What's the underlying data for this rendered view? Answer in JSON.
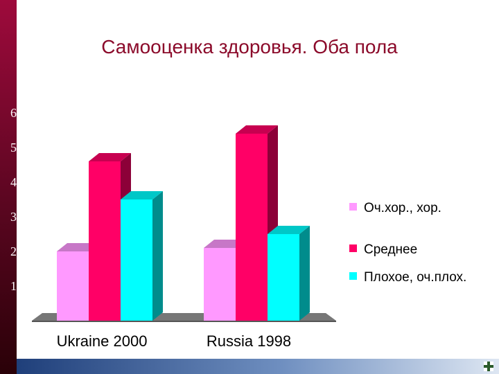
{
  "chart_data": {
    "type": "bar",
    "title": "Самооценка здоровья. Оба пола",
    "categories": [
      "Ukraine 2000",
      "Russia 1998"
    ],
    "series": [
      {
        "name": "Оч.хор., хор.",
        "values": [
          2,
          2.1
        ],
        "color": "#ff99ff"
      },
      {
        "name": "Среднее",
        "values": [
          4.6,
          5.4
        ],
        "color": "#ff0066"
      },
      {
        "name": "Плохое, оч.плох.",
        "values": [
          3.5,
          2.5
        ],
        "color": "#00ffff"
      }
    ],
    "y_ticks": [
      "1",
      "2",
      "3",
      "4",
      "5",
      "6"
    ],
    "ylim": [
      0,
      6
    ],
    "grid": false,
    "legend": "right",
    "style": "3d-bars"
  }
}
